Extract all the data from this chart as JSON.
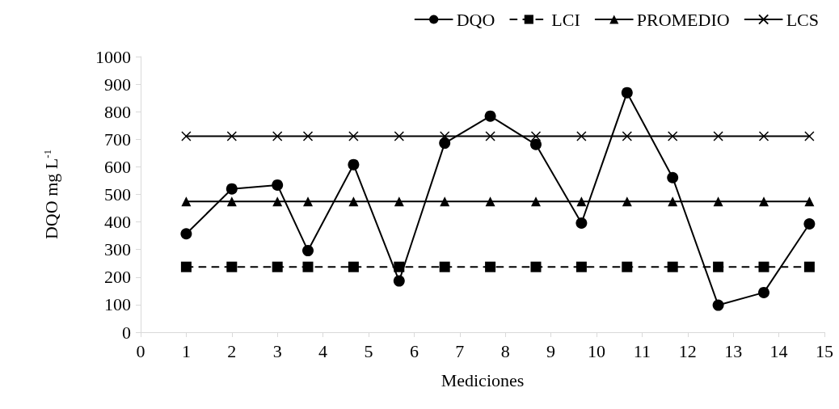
{
  "chart_data": {
    "type": "line",
    "xlabel": "Mediciones",
    "ylabel": "DQO mg L$^{-1}$",
    "xlim": [
      0,
      15
    ],
    "xticks": [
      0,
      1,
      2,
      3,
      4,
      5,
      6,
      7,
      8,
      9,
      10,
      11,
      12,
      13,
      14,
      15
    ],
    "ylim": [
      0,
      1000
    ],
    "yticks": [
      0,
      100,
      200,
      300,
      400,
      500,
      600,
      700,
      800,
      900,
      1000
    ],
    "grid": false,
    "legend": "top right",
    "x": [
      1,
      2,
      3,
      3.67,
      4.67,
      5.67,
      6.67,
      7.67,
      8.67,
      9.67,
      10.67,
      11.67,
      12.67,
      13.67,
      14.67
    ],
    "series": [
      {
        "name": "DQO",
        "color": "#000000",
        "marker": "circle",
        "line_style": "solid",
        "values": [
          357,
          520,
          534,
          296,
          608,
          186,
          686,
          784,
          681,
          396,
          869,
          561,
          98,
          144,
          393
        ]
      },
      {
        "name": "LCI",
        "color": "#000000",
        "marker": "square",
        "line_style": "dashed",
        "values": [
          237,
          237,
          237,
          237,
          237,
          237,
          237,
          237,
          237,
          237,
          237,
          237,
          237,
          237,
          237
        ]
      },
      {
        "name": "PROMEDIO",
        "color": "#000000",
        "marker": "triangle",
        "line_style": "solid",
        "values": [
          474,
          474,
          474,
          474,
          474,
          474,
          474,
          474,
          474,
          474,
          474,
          474,
          474,
          474,
          474
        ]
      },
      {
        "name": "LCS",
        "color": "#000000",
        "marker": "cross",
        "line_style": "solid",
        "values": [
          711,
          711,
          711,
          711,
          711,
          711,
          711,
          711,
          711,
          711,
          711,
          711,
          711,
          711,
          711
        ]
      }
    ]
  }
}
